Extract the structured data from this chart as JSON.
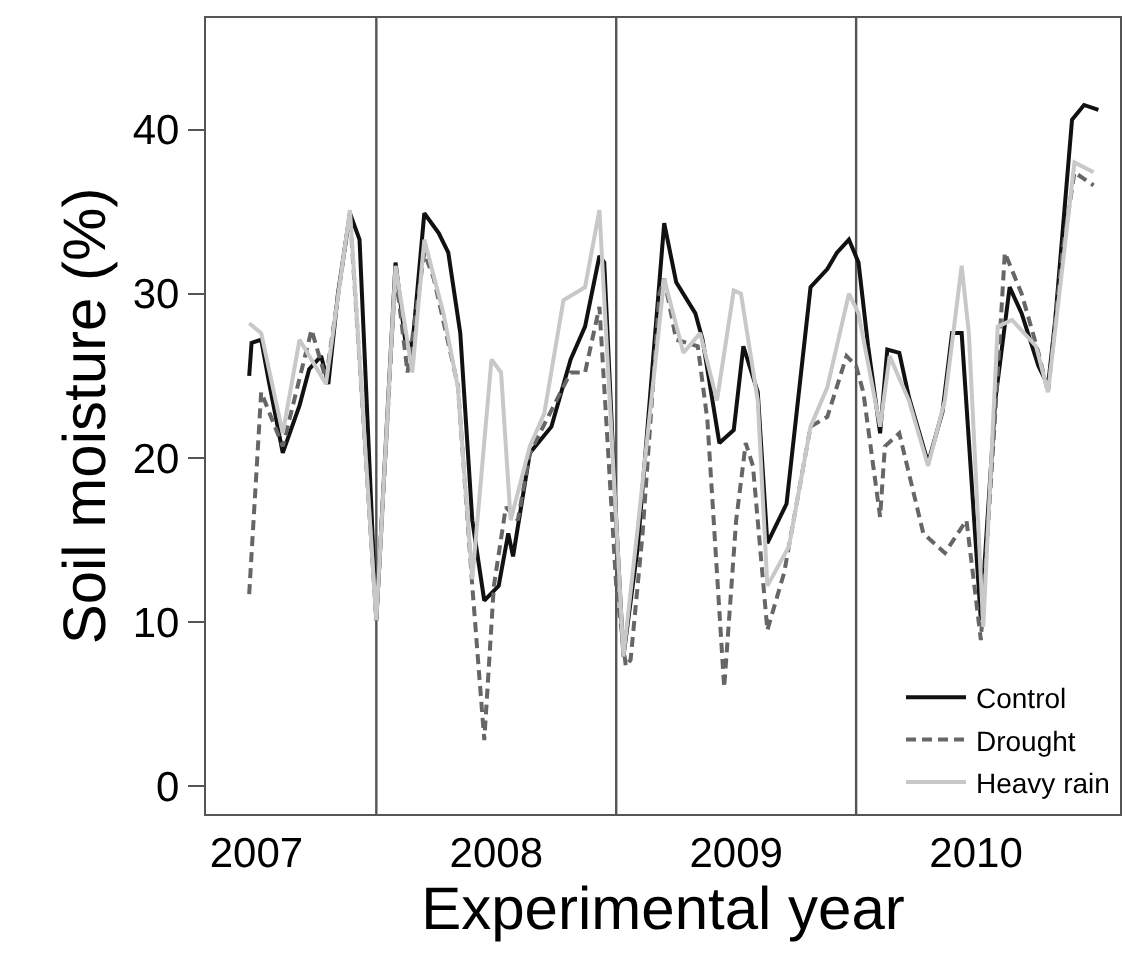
{
  "chart_data": {
    "type": "line",
    "xlabel": "Experimental year",
    "ylabel": "Soil moisture (%)",
    "xlim": [
      2006.79,
      2010.6
    ],
    "xticks": [
      2007,
      2008,
      2009,
      2010
    ],
    "ylim": [
      -1.7,
      46.8
    ],
    "yticks": [
      0,
      10,
      20,
      30,
      40
    ],
    "grid": false,
    "legend": "bottom right",
    "marker": "none",
    "ref_lines": [
      {
        "axis": "x",
        "value": 2007.5,
        "color": "#555555"
      },
      {
        "axis": "x",
        "value": 2008.5,
        "color": "#555555"
      },
      {
        "axis": "x",
        "value": 2009.5,
        "color": "#555555"
      }
    ],
    "series": [
      {
        "name": "Control",
        "color": "#111111",
        "line_style": "solid",
        "x": [
          2006.97,
          2006.98,
          2007.02,
          2007.05,
          2007.11,
          2007.18,
          2007.22,
          2007.27,
          2007.3,
          2007.34,
          2007.39,
          2007.43,
          2007.5,
          2007.58,
          2007.62,
          2007.65,
          2007.7,
          2007.76,
          2007.8,
          2007.85,
          2007.9,
          2007.95,
          2008.01,
          2008.05,
          2008.07,
          2008.14,
          2008.23,
          2008.31,
          2008.37,
          2008.43,
          2008.45,
          2008.5,
          2008.53,
          2008.59,
          2008.7,
          2008.75,
          2008.83,
          2008.86,
          2008.93,
          2008.99,
          2009.03,
          2009.09,
          2009.13,
          2009.21,
          2009.31,
          2009.38,
          2009.42,
          2009.47,
          2009.51,
          2009.55,
          2009.6,
          2009.63,
          2009.68,
          2009.72,
          2009.8,
          2009.86,
          2009.9,
          2009.94,
          2010.02,
          2010.08,
          2010.14,
          2010.19,
          2010.26,
          2010.3,
          2010.33,
          2010.4,
          2010.45,
          2010.51
        ],
        "values": [
          25.0,
          27.0,
          27.2,
          24.8,
          20.3,
          23.2,
          25.4,
          26.2,
          24.5,
          30.0,
          34.9,
          33.3,
          10.1,
          31.9,
          27.2,
          26.8,
          34.9,
          33.7,
          32.5,
          27.6,
          16.2,
          11.3,
          12.2,
          15.4,
          14.0,
          20.3,
          21.9,
          26.0,
          28.0,
          32.3,
          31.9,
          16.2,
          7.9,
          14.6,
          34.3,
          30.7,
          28.8,
          27.2,
          20.9,
          21.7,
          26.8,
          24.0,
          14.8,
          17.2,
          30.4,
          31.5,
          32.5,
          33.3,
          31.9,
          26.8,
          21.5,
          26.6,
          26.4,
          23.7,
          19.7,
          22.8,
          27.6,
          27.6,
          10.1,
          23.5,
          30.4,
          28.8,
          25.6,
          24.4,
          28.4,
          40.6,
          41.5,
          41.2
        ]
      },
      {
        "name": "Drought",
        "color": "#666666",
        "line_style": "dashed",
        "x": [
          2006.97,
          2007.02,
          2007.11,
          2007.23,
          2007.29,
          2007.39,
          2007.5,
          2007.58,
          2007.63,
          2007.7,
          2007.74,
          2007.84,
          2007.9,
          2007.95,
          2007.99,
          2008.04,
          2008.09,
          2008.14,
          2008.31,
          2008.37,
          2008.43,
          2008.5,
          2008.54,
          2008.56,
          2008.61,
          2008.68,
          2008.7,
          2008.75,
          2008.84,
          2008.88,
          2008.95,
          2009.0,
          2009.04,
          2009.07,
          2009.13,
          2009.2,
          2009.31,
          2009.38,
          2009.46,
          2009.5,
          2009.53,
          2009.6,
          2009.62,
          2009.68,
          2009.78,
          2009.87,
          2009.96,
          2010.02,
          2010.08,
          2010.12,
          2010.19,
          2010.26,
          2010.3,
          2010.36,
          2010.41,
          2010.49
        ],
        "values": [
          11.7,
          24.0,
          20.7,
          27.8,
          24.8,
          34.9,
          10.1,
          31.3,
          25.2,
          32.5,
          30.9,
          24.4,
          12.2,
          2.8,
          12.2,
          17.0,
          16.2,
          20.3,
          25.2,
          25.2,
          29.2,
          12.2,
          7.3,
          7.7,
          15.4,
          30.0,
          30.9,
          27.2,
          26.8,
          22.3,
          6.0,
          16.2,
          20.9,
          19.5,
          9.5,
          13.0,
          21.9,
          22.5,
          26.2,
          25.6,
          24.0,
          16.4,
          20.7,
          21.5,
          15.4,
          14.2,
          16.2,
          8.9,
          22.7,
          32.5,
          30.0,
          26.4,
          24.0,
          32.5,
          37.4,
          36.6
        ]
      },
      {
        "name": "Heavy rain",
        "color": "#c8c8c8",
        "line_style": "solid",
        "x": [
          2006.97,
          2007.02,
          2007.11,
          2007.18,
          2007.29,
          2007.39,
          2007.5,
          2007.58,
          2007.65,
          2007.7,
          2007.78,
          2007.84,
          2007.9,
          2007.98,
          2008.02,
          2008.06,
          2008.14,
          2008.2,
          2008.28,
          2008.37,
          2008.43,
          2008.5,
          2008.53,
          2008.59,
          2008.7,
          2008.78,
          2008.85,
          2008.92,
          2008.99,
          2009.02,
          2009.09,
          2009.13,
          2009.22,
          2009.31,
          2009.38,
          2009.47,
          2009.51,
          2009.6,
          2009.64,
          2009.72,
          2009.8,
          2009.87,
          2009.94,
          2009.97,
          2010.03,
          2010.09,
          2010.15,
          2010.25,
          2010.3,
          2010.41,
          2010.49
        ],
        "values": [
          28.2,
          27.6,
          21.5,
          27.2,
          24.5,
          35.1,
          10.1,
          31.7,
          25.2,
          33.3,
          28.8,
          24.3,
          12.6,
          26.0,
          25.2,
          16.2,
          20.7,
          22.7,
          29.6,
          30.4,
          35.1,
          16.2,
          7.9,
          15.8,
          30.9,
          26.4,
          27.6,
          23.5,
          30.2,
          30.0,
          23.5,
          12.2,
          14.6,
          21.9,
          24.3,
          30.0,
          28.8,
          21.9,
          26.2,
          23.5,
          19.5,
          23.5,
          31.7,
          27.6,
          9.7,
          28.0,
          28.4,
          26.8,
          24.0,
          38.0,
          37.4
        ]
      }
    ]
  }
}
